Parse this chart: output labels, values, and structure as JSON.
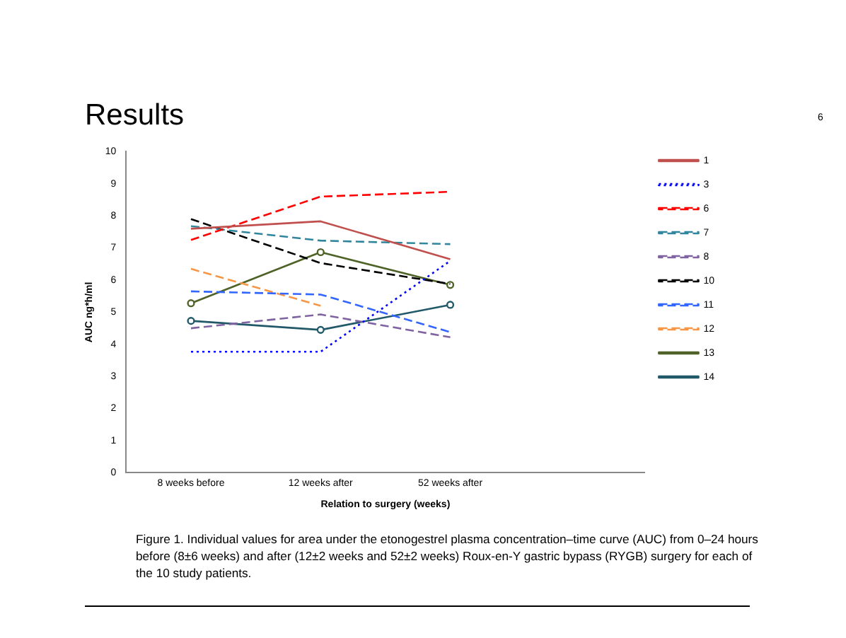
{
  "chart_data": {
    "type": "line",
    "title": "Results",
    "xlabel": "Relation to surgery (weeks)",
    "ylabel": "AUC ng*h/ml",
    "categories": [
      "8 weeks before",
      "12 weeks after",
      "52 weeks after",
      null
    ],
    "ylim": [
      0,
      10
    ],
    "yticks": [
      0,
      1,
      2,
      3,
      4,
      5,
      6,
      7,
      8,
      9,
      10
    ],
    "grid": false,
    "legend": "right",
    "series": [
      {
        "name": "1",
        "color": "#c0504d",
        "line_style": "solid",
        "values": [
          7.6,
          7.83,
          6.65,
          null
        ]
      },
      {
        "name": "3",
        "color": "#0000ff",
        "line_style": "dotted",
        "values": [
          3.77,
          3.77,
          6.6,
          null
        ]
      },
      {
        "name": "6",
        "color": "#ff0000",
        "line_style": "dashed",
        "values": [
          7.25,
          8.6,
          8.75,
          null
        ]
      },
      {
        "name": "7",
        "color": "#31859c",
        "line_style": "dashed",
        "values": [
          7.68,
          7.23,
          7.12,
          null
        ]
      },
      {
        "name": "8",
        "color": "#8064a2",
        "line_style": "dashed",
        "values": [
          4.5,
          4.93,
          4.22,
          null
        ]
      },
      {
        "name": "10",
        "color": "#000000",
        "line_style": "dashed",
        "values": [
          7.9,
          6.53,
          5.88,
          null
        ]
      },
      {
        "name": "11",
        "color": "#3366ff",
        "line_style": "dashed",
        "values": [
          5.65,
          5.55,
          4.38,
          null
        ]
      },
      {
        "name": "12",
        "color": "#f79646",
        "line_style": "dashed",
        "values": [
          6.35,
          5.2,
          null,
          null
        ]
      },
      {
        "name": "13",
        "color": "#4f6228",
        "line_style": "solid",
        "marker": "circle",
        "values": [
          5.28,
          6.87,
          5.85,
          null
        ]
      },
      {
        "name": "14",
        "color": "#215968",
        "line_style": "solid",
        "marker": "circle",
        "values": [
          4.73,
          4.45,
          5.23,
          null
        ]
      }
    ],
    "annotations": [
      "6",
      "Figure 1. Individual values for area under the etonogestrel plasma concentration–time curve (AUC) from 0–24 hours before (8±6 weeks) and after (12±2 weeks and 52±2 weeks) Roux-en-Y gastric bypass (RYGB) surgery for each of the 10 study patients."
    ]
  }
}
